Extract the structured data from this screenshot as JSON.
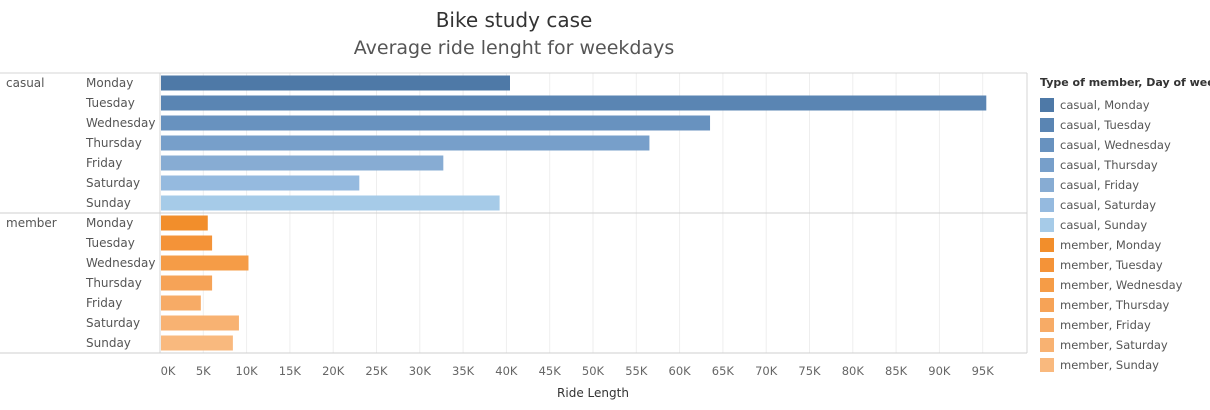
{
  "title": "Bike study case",
  "subtitle": "Average ride lenght for weekdays",
  "legend": {
    "title": "Type of member, Day of week",
    "items": [
      {
        "label": "casual, Monday",
        "color": "#4e79a7"
      },
      {
        "label": "casual, Tuesday",
        "color": "#5a85b3"
      },
      {
        "label": "casual, Wednesday",
        "color": "#6892bf"
      },
      {
        "label": "casual, Thursday",
        "color": "#779fca"
      },
      {
        "label": "casual, Friday",
        "color": "#87acd3"
      },
      {
        "label": "casual, Saturday",
        "color": "#95badf"
      },
      {
        "label": "casual, Sunday",
        "color": "#a6cbe8"
      },
      {
        "label": "member, Monday",
        "color": "#f28e2b"
      },
      {
        "label": "member, Tuesday",
        "color": "#f49338"
      },
      {
        "label": "member, Wednesday",
        "color": "#f59c47"
      },
      {
        "label": "member, Thursday",
        "color": "#f6a357"
      },
      {
        "label": "member, Friday",
        "color": "#f7ab66"
      },
      {
        "label": "member, Saturday",
        "color": "#f8b272"
      },
      {
        "label": "member, Sunday",
        "color": "#f9b97e"
      }
    ]
  },
  "chart_data": {
    "type": "bar",
    "orientation": "horizontal",
    "title": "Bike study case",
    "subtitle": "Average ride lenght for weekdays",
    "xlabel": "Ride Length",
    "ylabel": "",
    "xlim": [
      0,
      100000
    ],
    "grid": true,
    "legend_position": "right",
    "x_ticks": [
      "0K",
      "5K",
      "10K",
      "15K",
      "20K",
      "25K",
      "30K",
      "35K",
      "40K",
      "45K",
      "50K",
      "55K",
      "60K",
      "65K",
      "70K",
      "75K",
      "80K",
      "85K",
      "90K",
      "95K"
    ],
    "groups": [
      {
        "name": "casual",
        "categories": [
          "Monday",
          "Tuesday",
          "Wednesday",
          "Thursday",
          "Friday",
          "Saturday",
          "Sunday"
        ],
        "values": [
          40300,
          95300,
          63400,
          56400,
          32600,
          22900,
          39100
        ],
        "colors": [
          "#4e79a7",
          "#5a85b3",
          "#6892bf",
          "#779fca",
          "#87acd3",
          "#95badf",
          "#a6cbe8"
        ]
      },
      {
        "name": "member",
        "categories": [
          "Monday",
          "Tuesday",
          "Wednesday",
          "Thursday",
          "Friday",
          "Saturday",
          "Sunday"
        ],
        "values": [
          5400,
          5900,
          10100,
          5900,
          4600,
          9000,
          8300
        ],
        "colors": [
          "#f28e2b",
          "#f49338",
          "#f59c47",
          "#f6a357",
          "#f7ab66",
          "#f8b272",
          "#f9b97e"
        ]
      }
    ]
  }
}
